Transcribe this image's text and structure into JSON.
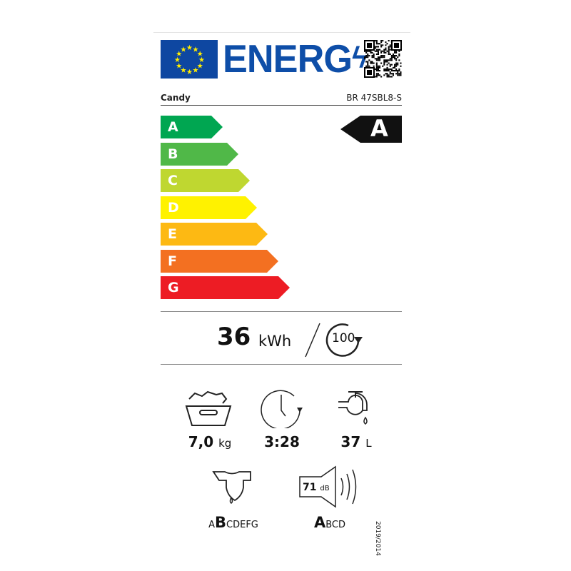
{
  "header": {
    "logo_text": "ENERG",
    "brand": "Candy",
    "model": "BR 47SBL8-S"
  },
  "classes": [
    {
      "letter": "A",
      "color": "#00a651"
    },
    {
      "letter": "B",
      "color": "#50b848"
    },
    {
      "letter": "C",
      "color": "#bfd730"
    },
    {
      "letter": "D",
      "color": "#fff200"
    },
    {
      "letter": "E",
      "color": "#fdb913"
    },
    {
      "letter": "F",
      "color": "#f37021"
    },
    {
      "letter": "G",
      "color": "#ed1c24"
    }
  ],
  "rating": {
    "class": "A"
  },
  "energy": {
    "value": "36",
    "unit": "kWh",
    "cycles": "100"
  },
  "specs": {
    "capacity": {
      "value": "7,0",
      "unit": "kg",
      "icon": "laundry-basket-icon"
    },
    "duration": {
      "value": "3:28",
      "icon": "clock-icon"
    },
    "water": {
      "value": "37",
      "unit": "L",
      "icon": "water-tap-icon"
    },
    "spin": {
      "pre": "A",
      "selected": "B",
      "post": "CDEFG",
      "icon": "spin-drying-shirt-icon"
    },
    "noise": {
      "value": "71",
      "unit": "dB",
      "selected": "A",
      "post": "BCD",
      "icon": "speaker-icon"
    }
  },
  "regulation": "2019/2014"
}
